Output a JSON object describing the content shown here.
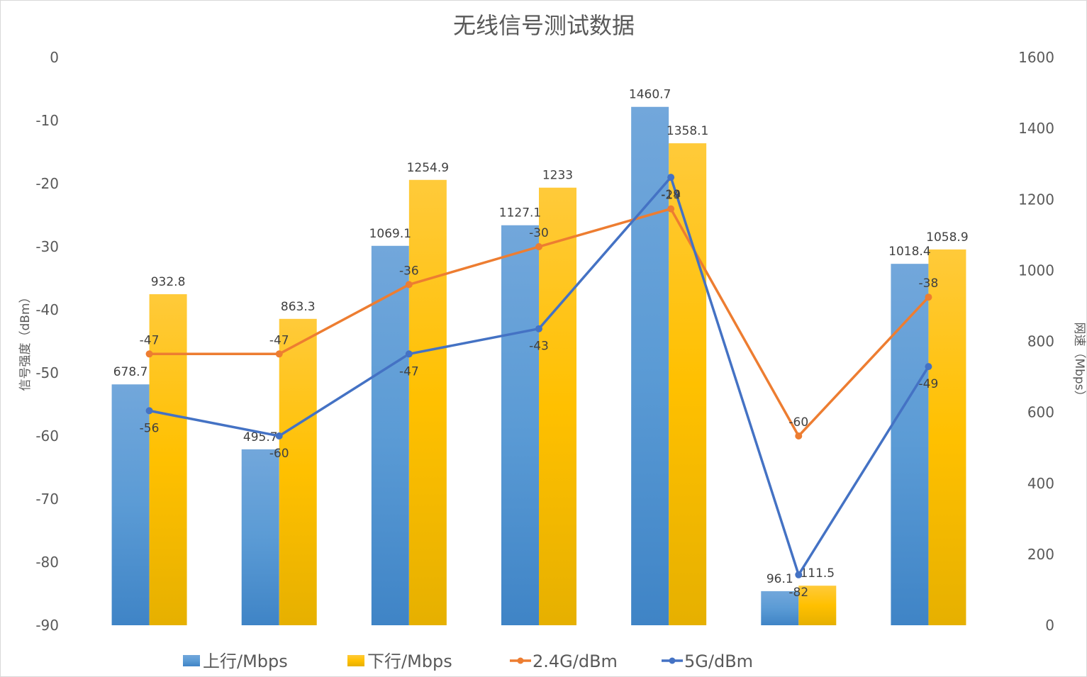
{
  "chart_data": {
    "type": "bar+line",
    "title": "无线信号测试数据",
    "categories": [
      "",
      "",
      "",
      "",
      "",
      "",
      ""
    ],
    "left_axis": {
      "label": "信号强度（dBm）",
      "min": -90,
      "max": 0,
      "step": 10,
      "ticks": [
        "0",
        "-10",
        "-20",
        "-30",
        "-40",
        "-50",
        "-60",
        "-70",
        "-80",
        "-90"
      ]
    },
    "right_axis": {
      "label": "网速（Mbps）",
      "min": 0,
      "max": 1600,
      "step": 200,
      "ticks": [
        "1600",
        "1400",
        "1200",
        "1000",
        "800",
        "600",
        "400",
        "200",
        "0"
      ]
    },
    "series": [
      {
        "name": "上行/Mbps",
        "kind": "bar",
        "axis": "right",
        "color": "#5b9bd5",
        "values": [
          678.7,
          495.7,
          1069.1,
          1127.1,
          1460.7,
          96.1,
          1018.4
        ],
        "labels": [
          "678.7",
          "495.7",
          "1069.1",
          "1127.1",
          "1460.7",
          "96.1",
          "1018.4"
        ]
      },
      {
        "name": "下行/Mbps",
        "kind": "bar",
        "axis": "right",
        "color": "#ffc000",
        "values": [
          932.8,
          863.3,
          1254.9,
          1233,
          1358.1,
          111.5,
          1058.9
        ],
        "labels": [
          "932.8",
          "863.3",
          "1254.9",
          "1233",
          "1358.1",
          "111.5",
          "1058.9"
        ]
      },
      {
        "name": "2.4G/dBm",
        "kind": "line",
        "axis": "left",
        "color": "#ed7d31",
        "values": [
          -47,
          -47,
          -36,
          -30,
          -24,
          -60,
          -38
        ],
        "labels": [
          "-47",
          "-47",
          "-36",
          "-30",
          "-24",
          "-60",
          "-38"
        ]
      },
      {
        "name": "5G/dBm",
        "kind": "line",
        "axis": "left",
        "color": "#4472c4",
        "values": [
          -56,
          -60,
          -47,
          -43,
          -19,
          -82,
          -49
        ],
        "labels": [
          "-56",
          "-60",
          "-47",
          "-43",
          "-19",
          "-82",
          "-49"
        ]
      }
    ],
    "legend": "bottom",
    "grid": false
  }
}
